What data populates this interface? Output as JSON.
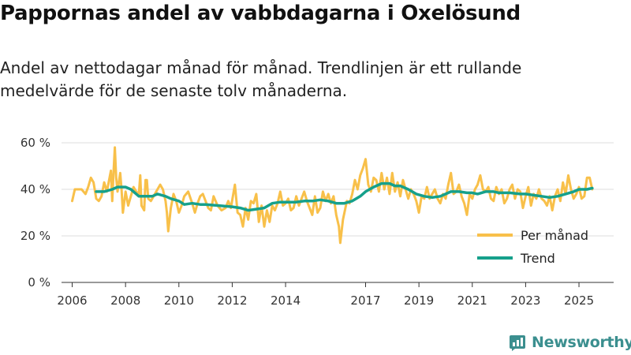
{
  "page": {
    "title": "Pappornas andel av vabbdagarna i Oxelösund",
    "subtitle": "Andel av nettodagar månad för månad. Trendlinjen är ett rullande medelvärde för de senaste tolv månaderna.",
    "brand": "Newsworthy"
  },
  "colors": {
    "monthly": "#f8c04a",
    "trend": "#16a08b",
    "grid": "#dddddd",
    "brand": "#3b8f8f"
  },
  "chart_data": {
    "type": "line",
    "title": "Pappornas andel av vabbdagarna i Oxelösund",
    "xlabel": "",
    "ylabel": "",
    "xlim": [
      2005.6,
      2026.3
    ],
    "ylim": [
      0,
      60
    ],
    "y_ticks": [
      0,
      20,
      40,
      60
    ],
    "y_tick_labels": [
      "0 %",
      "20 %",
      "40 %",
      "60 %"
    ],
    "x_ticks": [
      2006,
      2008,
      2010,
      2012,
      2014,
      2017,
      2019,
      2021,
      2023,
      2025
    ],
    "x_tick_labels": [
      "2006",
      "2008",
      "2010",
      "2012",
      "2014",
      "2017",
      "2019",
      "2021",
      "2023",
      "2025"
    ],
    "grid": true,
    "legend": "bottom-right",
    "series": [
      {
        "name": "Per månad",
        "key": "monthly",
        "points": [
          [
            2006.0,
            35
          ],
          [
            2006.1,
            40
          ],
          [
            2006.2,
            40
          ],
          [
            2006.35,
            40
          ],
          [
            2006.5,
            38
          ],
          [
            2006.6,
            41
          ],
          [
            2006.7,
            45
          ],
          [
            2006.8,
            43
          ],
          [
            2006.9,
            36
          ],
          [
            2007.0,
            35
          ],
          [
            2007.1,
            37
          ],
          [
            2007.2,
            43
          ],
          [
            2007.3,
            39
          ],
          [
            2007.4,
            45
          ],
          [
            2007.45,
            48
          ],
          [
            2007.5,
            35
          ],
          [
            2007.55,
            47
          ],
          [
            2007.6,
            58
          ],
          [
            2007.65,
            45
          ],
          [
            2007.7,
            39
          ],
          [
            2007.8,
            47
          ],
          [
            2007.85,
            40
          ],
          [
            2007.9,
            30
          ],
          [
            2008.0,
            39
          ],
          [
            2008.1,
            33
          ],
          [
            2008.2,
            37
          ],
          [
            2008.3,
            41
          ],
          [
            2008.4,
            39
          ],
          [
            2008.5,
            38
          ],
          [
            2008.55,
            46
          ],
          [
            2008.6,
            33
          ],
          [
            2008.7,
            31
          ],
          [
            2008.75,
            44
          ],
          [
            2008.8,
            44
          ],
          [
            2008.85,
            36
          ],
          [
            2008.95,
            35
          ],
          [
            2009.1,
            38
          ],
          [
            2009.2,
            40
          ],
          [
            2009.3,
            42
          ],
          [
            2009.4,
            40
          ],
          [
            2009.5,
            35
          ],
          [
            2009.55,
            30
          ],
          [
            2009.6,
            22
          ],
          [
            2009.7,
            32
          ],
          [
            2009.8,
            38
          ],
          [
            2009.9,
            35
          ],
          [
            2010.0,
            30
          ],
          [
            2010.1,
            33
          ],
          [
            2010.2,
            37
          ],
          [
            2010.35,
            39
          ],
          [
            2010.5,
            34
          ],
          [
            2010.6,
            30
          ],
          [
            2010.7,
            34
          ],
          [
            2010.8,
            37
          ],
          [
            2010.9,
            38
          ],
          [
            2011.0,
            35
          ],
          [
            2011.1,
            32
          ],
          [
            2011.2,
            31
          ],
          [
            2011.3,
            37
          ],
          [
            2011.45,
            33
          ],
          [
            2011.6,
            31
          ],
          [
            2011.75,
            32
          ],
          [
            2011.85,
            35
          ],
          [
            2011.95,
            32
          ],
          [
            2012.1,
            42
          ],
          [
            2012.2,
            30
          ],
          [
            2012.3,
            29
          ],
          [
            2012.4,
            24
          ],
          [
            2012.5,
            32
          ],
          [
            2012.6,
            27
          ],
          [
            2012.7,
            35
          ],
          [
            2012.8,
            34
          ],
          [
            2012.9,
            38
          ],
          [
            2013.0,
            26
          ],
          [
            2013.1,
            33
          ],
          [
            2013.2,
            24
          ],
          [
            2013.3,
            31
          ],
          [
            2013.4,
            26
          ],
          [
            2013.5,
            33
          ],
          [
            2013.6,
            31
          ],
          [
            2013.7,
            34
          ],
          [
            2013.8,
            39
          ],
          [
            2013.9,
            33
          ],
          [
            2014.0,
            34
          ],
          [
            2014.1,
            36
          ],
          [
            2014.2,
            31
          ],
          [
            2014.3,
            32
          ],
          [
            2014.4,
            37
          ],
          [
            2014.5,
            33
          ],
          [
            2014.6,
            36
          ],
          [
            2014.7,
            39
          ],
          [
            2014.8,
            35
          ],
          [
            2014.9,
            32
          ],
          [
            2015.0,
            29
          ],
          [
            2015.1,
            37
          ],
          [
            2015.2,
            30
          ],
          [
            2015.3,
            32
          ],
          [
            2015.4,
            39
          ],
          [
            2015.5,
            35
          ],
          [
            2015.6,
            38
          ],
          [
            2015.7,
            34
          ],
          [
            2015.8,
            37
          ],
          [
            2015.9,
            29
          ],
          [
            2016.0,
            24
          ],
          [
            2016.05,
            17
          ],
          [
            2016.15,
            27
          ],
          [
            2016.3,
            35
          ],
          [
            2016.4,
            34
          ],
          [
            2016.5,
            38
          ],
          [
            2016.6,
            44
          ],
          [
            2016.7,
            40
          ],
          [
            2016.8,
            46
          ],
          [
            2016.9,
            49
          ],
          [
            2017.0,
            53
          ],
          [
            2017.1,
            42
          ],
          [
            2017.2,
            39
          ],
          [
            2017.3,
            45
          ],
          [
            2017.4,
            44
          ],
          [
            2017.5,
            39
          ],
          [
            2017.6,
            47
          ],
          [
            2017.7,
            40
          ],
          [
            2017.8,
            45
          ],
          [
            2017.9,
            38
          ],
          [
            2018.0,
            47
          ],
          [
            2018.1,
            39
          ],
          [
            2018.2,
            43
          ],
          [
            2018.3,
            37
          ],
          [
            2018.4,
            44
          ],
          [
            2018.5,
            40
          ],
          [
            2018.6,
            36
          ],
          [
            2018.7,
            40
          ],
          [
            2018.8,
            38
          ],
          [
            2018.9,
            35
          ],
          [
            2019.0,
            30
          ],
          [
            2019.1,
            37
          ],
          [
            2019.2,
            36
          ],
          [
            2019.3,
            41
          ],
          [
            2019.4,
            36
          ],
          [
            2019.5,
            38
          ],
          [
            2019.6,
            40
          ],
          [
            2019.7,
            36
          ],
          [
            2019.8,
            34
          ],
          [
            2019.9,
            38
          ],
          [
            2020.0,
            36
          ],
          [
            2020.1,
            42
          ],
          [
            2020.2,
            47
          ],
          [
            2020.3,
            38
          ],
          [
            2020.4,
            39
          ],
          [
            2020.5,
            42
          ],
          [
            2020.6,
            37
          ],
          [
            2020.7,
            34
          ],
          [
            2020.8,
            29
          ],
          [
            2020.9,
            38
          ],
          [
            2021.0,
            36
          ],
          [
            2021.1,
            40
          ],
          [
            2021.2,
            42
          ],
          [
            2021.3,
            46
          ],
          [
            2021.4,
            40
          ],
          [
            2021.5,
            39
          ],
          [
            2021.6,
            41
          ],
          [
            2021.7,
            36
          ],
          [
            2021.8,
            35
          ],
          [
            2021.9,
            41
          ],
          [
            2022.0,
            38
          ],
          [
            2022.1,
            40
          ],
          [
            2022.2,
            34
          ],
          [
            2022.3,
            36
          ],
          [
            2022.4,
            40
          ],
          [
            2022.5,
            42
          ],
          [
            2022.6,
            36
          ],
          [
            2022.7,
            40
          ],
          [
            2022.8,
            39
          ],
          [
            2022.9,
            32
          ],
          [
            2023.0,
            37
          ],
          [
            2023.1,
            41
          ],
          [
            2023.2,
            33
          ],
          [
            2023.3,
            38
          ],
          [
            2023.4,
            36
          ],
          [
            2023.5,
            40
          ],
          [
            2023.6,
            36
          ],
          [
            2023.7,
            35
          ],
          [
            2023.8,
            33
          ],
          [
            2023.9,
            37
          ],
          [
            2024.0,
            31
          ],
          [
            2024.1,
            37
          ],
          [
            2024.2,
            40
          ],
          [
            2024.3,
            35
          ],
          [
            2024.4,
            43
          ],
          [
            2024.5,
            38
          ],
          [
            2024.6,
            46
          ],
          [
            2024.7,
            40
          ],
          [
            2024.8,
            36
          ],
          [
            2024.9,
            38
          ],
          [
            2025.0,
            41
          ],
          [
            2025.1,
            36
          ],
          [
            2025.2,
            37
          ],
          [
            2025.3,
            45
          ],
          [
            2025.4,
            45
          ],
          [
            2025.5,
            40
          ]
        ]
      },
      {
        "name": "Trend",
        "key": "trend",
        "points": [
          [
            2006.9,
            39
          ],
          [
            2007.2,
            39
          ],
          [
            2007.5,
            40
          ],
          [
            2007.7,
            41
          ],
          [
            2008.0,
            41
          ],
          [
            2008.2,
            40
          ],
          [
            2008.5,
            37
          ],
          [
            2008.8,
            37
          ],
          [
            2009.0,
            37
          ],
          [
            2009.2,
            38
          ],
          [
            2009.5,
            37
          ],
          [
            2009.7,
            36
          ],
          [
            2010.0,
            35
          ],
          [
            2010.2,
            33.5
          ],
          [
            2010.5,
            34
          ],
          [
            2010.8,
            33.5
          ],
          [
            2011.0,
            33.5
          ],
          [
            2011.5,
            33
          ],
          [
            2012.0,
            32.5
          ],
          [
            2012.3,
            32
          ],
          [
            2012.6,
            31
          ],
          [
            2012.9,
            31.5
          ],
          [
            2013.2,
            32
          ],
          [
            2013.5,
            34
          ],
          [
            2013.8,
            34.5
          ],
          [
            2014.0,
            34.5
          ],
          [
            2014.4,
            34.5
          ],
          [
            2014.7,
            35
          ],
          [
            2015.0,
            35
          ],
          [
            2015.3,
            35.5
          ],
          [
            2015.6,
            35
          ],
          [
            2015.9,
            34
          ],
          [
            2016.2,
            34
          ],
          [
            2016.5,
            35
          ],
          [
            2016.8,
            37
          ],
          [
            2017.0,
            39
          ],
          [
            2017.3,
            41
          ],
          [
            2017.6,
            42.5
          ],
          [
            2017.9,
            42.5
          ],
          [
            2018.1,
            41.5
          ],
          [
            2018.3,
            41.5
          ],
          [
            2018.6,
            40
          ],
          [
            2018.9,
            38
          ],
          [
            2019.2,
            37
          ],
          [
            2019.5,
            36.5
          ],
          [
            2019.8,
            37
          ],
          [
            2020.0,
            38
          ],
          [
            2020.2,
            39
          ],
          [
            2020.5,
            39
          ],
          [
            2020.8,
            38.5
          ],
          [
            2021.0,
            38.5
          ],
          [
            2021.2,
            38
          ],
          [
            2021.5,
            39
          ],
          [
            2021.8,
            39
          ],
          [
            2022.0,
            38.5
          ],
          [
            2022.4,
            38.5
          ],
          [
            2022.8,
            38
          ],
          [
            2023.0,
            38
          ],
          [
            2023.3,
            37.5
          ],
          [
            2023.6,
            37
          ],
          [
            2023.9,
            36.5
          ],
          [
            2024.2,
            37
          ],
          [
            2024.5,
            38
          ],
          [
            2024.8,
            39
          ],
          [
            2025.0,
            40
          ],
          [
            2025.3,
            40
          ],
          [
            2025.5,
            40.5
          ]
        ]
      }
    ]
  }
}
